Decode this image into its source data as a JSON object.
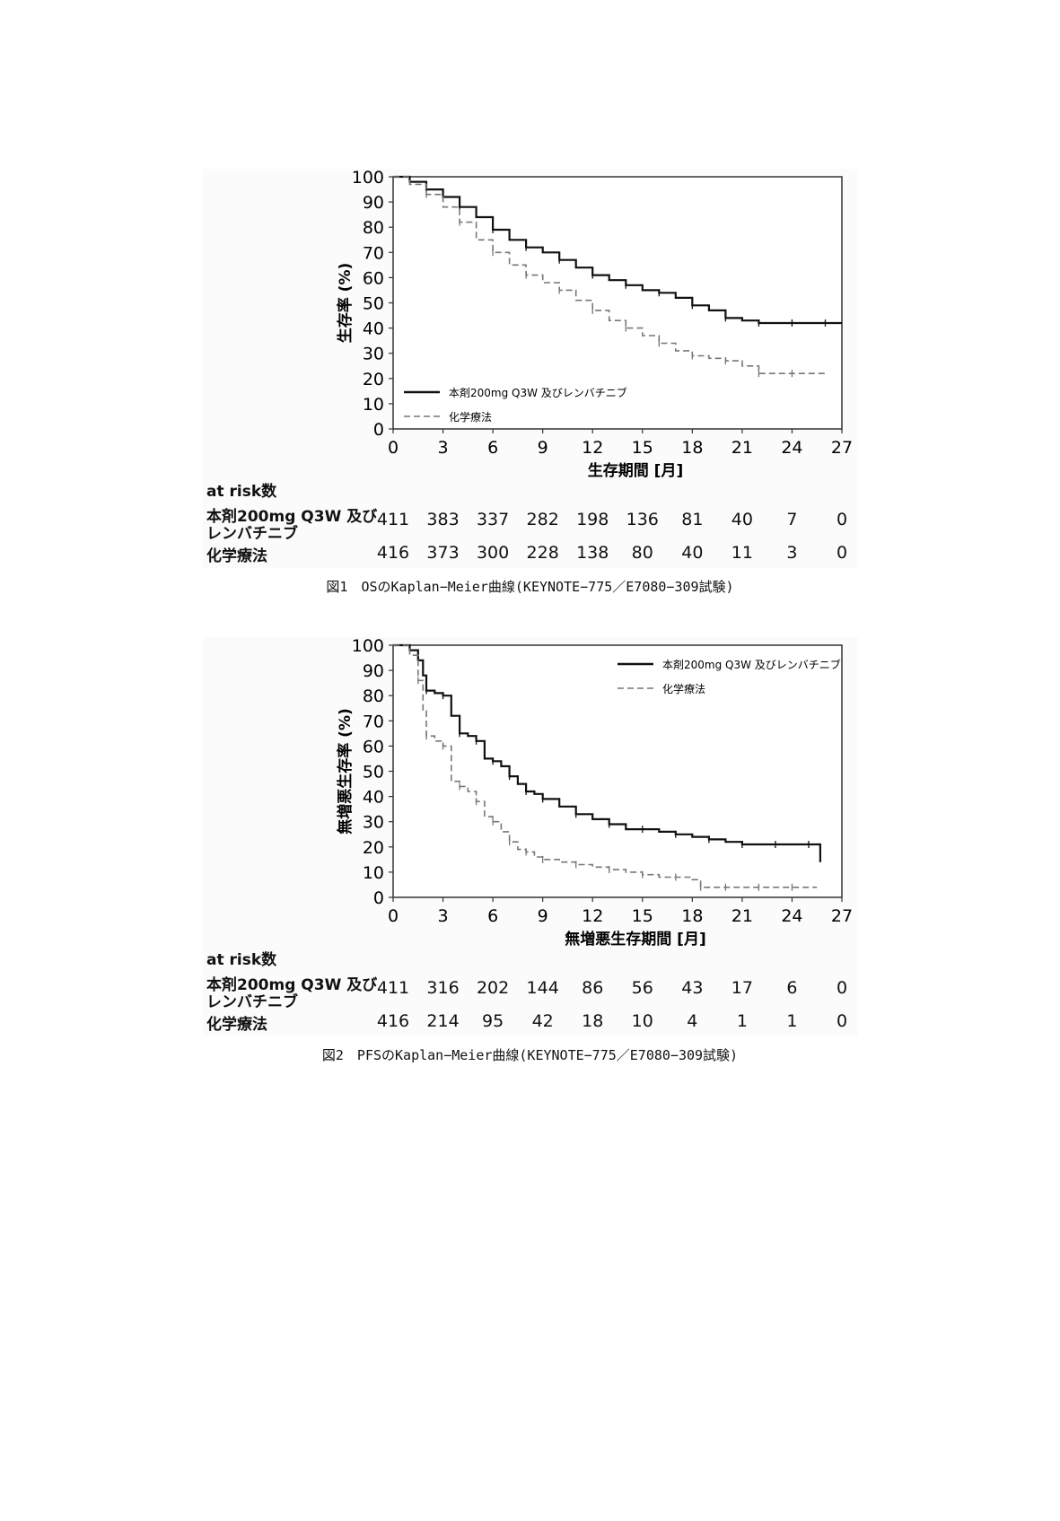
{
  "charts": [
    {
      "id": "os",
      "type": "line",
      "ylabel": "生存率 (%)",
      "xlabel": "生存期間 [月]",
      "xlim": [
        0,
        27
      ],
      "ylim": [
        0,
        100
      ],
      "xticks": [
        "0",
        "3",
        "6",
        "9",
        "12",
        "15",
        "18",
        "21",
        "24",
        "27"
      ],
      "yticks": [
        "0",
        "10",
        "20",
        "30",
        "40",
        "50",
        "60",
        "70",
        "80",
        "90",
        "100"
      ],
      "legend_position": "bottom-left",
      "series": [
        {
          "name": "本剤200mg Q3W 及びレンバチニブ",
          "color": "#111111",
          "dash": false,
          "x": [
            0,
            1,
            2,
            3,
            4,
            5,
            6,
            7,
            8,
            9,
            10,
            11,
            12,
            13,
            14,
            15,
            16,
            17,
            18,
            19,
            20,
            21,
            22,
            23,
            24,
            25,
            26,
            27
          ],
          "y": [
            100,
            98,
            95,
            92,
            88,
            84,
            79,
            75,
            72,
            70,
            67,
            64,
            61,
            59,
            57,
            55,
            54,
            52,
            49,
            47,
            44,
            43,
            42,
            42,
            42,
            42,
            42,
            42
          ]
        },
        {
          "name": "化学療法",
          "color": "#777777",
          "dash": true,
          "x": [
            0,
            1,
            2,
            3,
            4,
            5,
            6,
            7,
            8,
            9,
            10,
            11,
            12,
            13,
            14,
            15,
            16,
            17,
            18,
            19,
            20,
            21,
            22,
            23,
            24,
            25,
            26
          ],
          "y": [
            100,
            97,
            93,
            88,
            82,
            75,
            70,
            65,
            61,
            58,
            55,
            51,
            47,
            43,
            40,
            37,
            34,
            31,
            29,
            28,
            27,
            25,
            22,
            22,
            22,
            22,
            22
          ]
        }
      ],
      "risk_table": {
        "title": "at risk数",
        "timepoints": [
          "0",
          "3",
          "6",
          "9",
          "12",
          "15",
          "18",
          "21",
          "24",
          "27"
        ],
        "rows": [
          {
            "label_line1": "本剤200mg Q3W 及び",
            "label_line2": "レンバチニブ",
            "values": [
              "411",
              "383",
              "337",
              "282",
              "198",
              "136",
              "81",
              "40",
              "7",
              "0"
            ]
          },
          {
            "label_line1": "化学療法",
            "label_line2": "",
            "values": [
              "416",
              "373",
              "300",
              "228",
              "138",
              "80",
              "40",
              "11",
              "3",
              "0"
            ]
          }
        ]
      },
      "caption": "図1　OSのKaplan−Meier曲線(KEYNOTE−775／E7080−309試験)"
    },
    {
      "id": "pfs",
      "type": "line",
      "ylabel": "無増悪生存率 (%)",
      "xlabel": "無増悪生存期間 [月]",
      "xlim": [
        0,
        27
      ],
      "ylim": [
        0,
        100
      ],
      "xticks": [
        "0",
        "3",
        "6",
        "9",
        "12",
        "15",
        "18",
        "21",
        "24",
        "27"
      ],
      "yticks": [
        "0",
        "10",
        "20",
        "30",
        "40",
        "50",
        "60",
        "70",
        "80",
        "90",
        "100"
      ],
      "legend_position": "top-right",
      "series": [
        {
          "name": "本剤200mg Q3W 及びレンバチニブ",
          "color": "#111111",
          "dash": false,
          "x": [
            0,
            1,
            1.5,
            1.8,
            2,
            2.5,
            3,
            3.5,
            4,
            4.5,
            5,
            5.5,
            6,
            6.5,
            7,
            7.5,
            8,
            8.5,
            9,
            10,
            11,
            12,
            13,
            14,
            15,
            16,
            17,
            18,
            19,
            20,
            21,
            22,
            23,
            24,
            25,
            25.6,
            25.7
          ],
          "y": [
            100,
            98,
            94,
            88,
            82,
            81,
            80,
            72,
            65,
            64,
            62,
            55,
            54,
            52,
            48,
            45,
            42,
            41,
            39,
            36,
            33,
            31,
            29,
            27,
            27,
            26,
            25,
            24,
            23,
            22,
            21,
            21,
            21,
            21,
            21,
            21,
            14
          ]
        },
        {
          "name": "化学療法",
          "color": "#777777",
          "dash": true,
          "x": [
            0,
            1,
            1.5,
            1.8,
            2,
            2.5,
            3,
            3.5,
            4,
            4.5,
            5,
            5.5,
            6,
            6.5,
            7,
            7.5,
            8,
            8.5,
            9,
            10,
            11,
            12,
            13,
            14,
            15,
            16,
            17,
            18,
            18.5,
            19,
            20,
            21,
            22,
            23,
            24,
            25,
            25.5
          ],
          "y": [
            100,
            96,
            86,
            74,
            64,
            62,
            60,
            46,
            44,
            42,
            38,
            32,
            30,
            26,
            22,
            19,
            18,
            16,
            15,
            14,
            13,
            12,
            11,
            10,
            9,
            8,
            8,
            7,
            4,
            4,
            4,
            4,
            4,
            4,
            4,
            4,
            4
          ]
        }
      ],
      "risk_table": {
        "title": "at risk数",
        "timepoints": [
          "0",
          "3",
          "6",
          "9",
          "12",
          "15",
          "18",
          "21",
          "24",
          "27"
        ],
        "rows": [
          {
            "label_line1": "本剤200mg Q3W 及び",
            "label_line2": "レンバチニブ",
            "values": [
              "411",
              "316",
              "202",
              "144",
              "86",
              "56",
              "43",
              "17",
              "6",
              "0"
            ]
          },
          {
            "label_line1": "化学療法",
            "label_line2": "",
            "values": [
              "416",
              "214",
              "95",
              "42",
              "18",
              "10",
              "4",
              "1",
              "1",
              "0"
            ]
          }
        ]
      },
      "caption": "図2　PFSのKaplan−Meier曲線(KEYNOTE−775／E7080−309試験)"
    }
  ]
}
